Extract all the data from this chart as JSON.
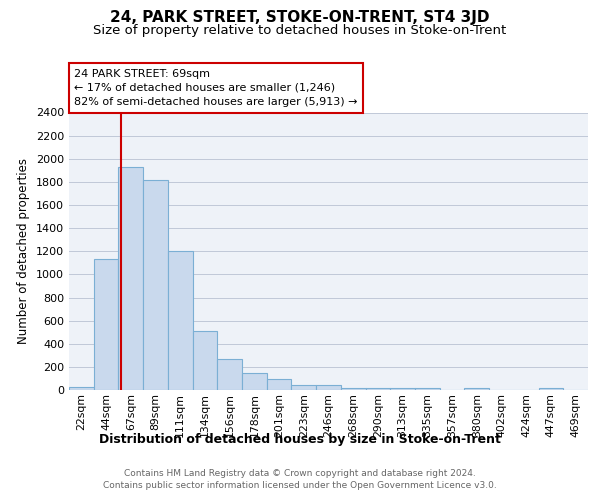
{
  "title": "24, PARK STREET, STOKE-ON-TRENT, ST4 3JD",
  "subtitle": "Size of property relative to detached houses in Stoke-on-Trent",
  "xlabel": "Distribution of detached houses by size in Stoke-on-Trent",
  "ylabel": "Number of detached properties",
  "footnote1": "Contains HM Land Registry data © Crown copyright and database right 2024.",
  "footnote2": "Contains public sector information licensed under the Open Government Licence v3.0.",
  "bin_labels": [
    "22sqm",
    "44sqm",
    "67sqm",
    "89sqm",
    "111sqm",
    "134sqm",
    "156sqm",
    "178sqm",
    "201sqm",
    "223sqm",
    "246sqm",
    "268sqm",
    "290sqm",
    "313sqm",
    "335sqm",
    "357sqm",
    "380sqm",
    "402sqm",
    "424sqm",
    "447sqm",
    "469sqm"
  ],
  "bar_heights": [
    30,
    1130,
    1930,
    1820,
    1200,
    510,
    265,
    150,
    95,
    45,
    45,
    20,
    20,
    20,
    20,
    0,
    20,
    0,
    0,
    20,
    0
  ],
  "bar_color": "#c9d9ed",
  "bar_edge_color": "#7bafd4",
  "annotation_title": "24 PARK STREET: 69sqm",
  "annotation_line1": "← 17% of detached houses are smaller (1,246)",
  "annotation_line2": "82% of semi-detached houses are larger (5,913) →",
  "annotation_box_color": "#ffffff",
  "annotation_box_edge_color": "#cc0000",
  "vline_color": "#cc0000",
  "ylim": [
    0,
    2400
  ],
  "yticks": [
    0,
    200,
    400,
    600,
    800,
    1000,
    1200,
    1400,
    1600,
    1800,
    2000,
    2200,
    2400
  ],
  "grid_color": "#c0c8d8",
  "bg_color": "#eef2f8",
  "title_fontsize": 11,
  "subtitle_fontsize": 9.5
}
